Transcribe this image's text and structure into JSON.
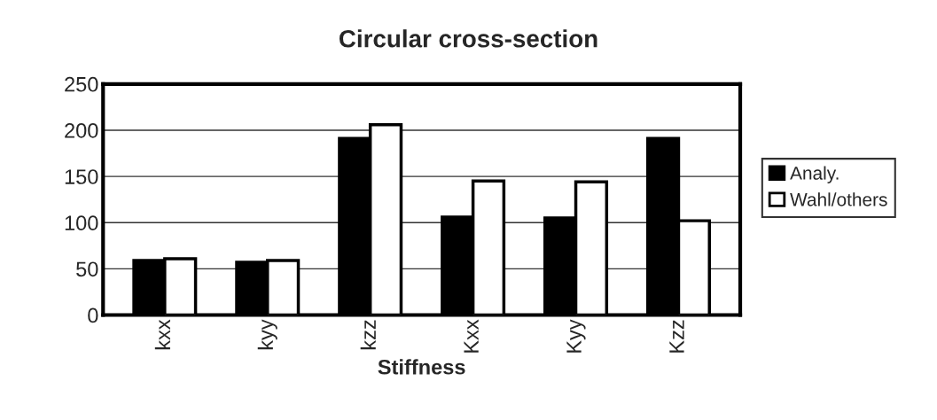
{
  "chart_data": {
    "type": "bar",
    "title": "Circular cross-section",
    "xlabel": "Stiffness",
    "categories": [
      "kxx",
      "kyy",
      "kzz",
      "Kxx",
      "Kyy",
      "Kzz"
    ],
    "series": [
      {
        "name": "Analy.",
        "color": "#000000",
        "values": [
          59,
          57,
          191,
          106,
          105,
          191
        ]
      },
      {
        "name": "Wahl/others",
        "color": "#ffffff",
        "values": [
          61,
          59,
          206,
          145,
          144,
          102
        ]
      }
    ],
    "ylim": [
      0,
      250
    ],
    "yticks": [
      0,
      50,
      100,
      150,
      200,
      250
    ],
    "grid": "y",
    "legend": "right"
  }
}
